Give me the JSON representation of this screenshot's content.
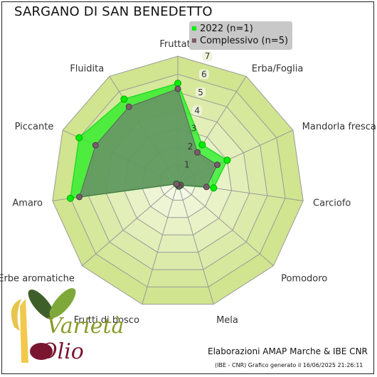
{
  "title": "SARGANO DI SAN BENEDETTO",
  "legend": [
    {
      "label": "2022 (n=1)",
      "color": "#00ee00"
    },
    {
      "label": "Complessivo (n=5)",
      "color": "#7a5c6c"
    }
  ],
  "footer": {
    "credit": "Elaborazioni AMAP Marche & IBE CNR",
    "note": "(IBE - CNR) Grafico generato il 16/06/2025 21:26:11"
  },
  "logo": {
    "text_top": "Varietà",
    "text_bottom": "Olio"
  },
  "colors": {
    "ring_fill": "#d4e795",
    "ring_stroke": "#a0a0a0",
    "series_2022_fill": "#22ee22",
    "series_all_fill": "#6b8a6a",
    "marker_all": "#7a5c6c"
  },
  "chart_data": {
    "type": "radar",
    "title": "SARGANO DI SAN BENEDETTO",
    "categories": [
      "Fruttato",
      "Erba/Foglia",
      "Mandorla fresca",
      "Carciofo",
      "Pomodoro",
      "Mela",
      "Frutti di bosco",
      "Erbe aromatiche",
      "Amaro",
      "Piccante",
      "Fluidita"
    ],
    "ticks": [
      "1",
      "2",
      "3",
      "4",
      "5",
      "6",
      "7"
    ],
    "range": [
      0,
      7
    ],
    "grid": true,
    "legend_position": "top-right",
    "series": [
      {
        "name": "2022 (n=1)",
        "values": [
          5.5,
          2.5,
          3.0,
          2.0,
          0.2,
          0.2,
          0.1,
          0.1,
          6.0,
          6.0,
          5.5
        ]
      },
      {
        "name": "Complessivo (n=5)",
        "values": [
          5.2,
          2.0,
          2.4,
          1.6,
          0.2,
          0.2,
          0.1,
          0.1,
          5.5,
          5.0,
          5.0
        ]
      }
    ]
  }
}
